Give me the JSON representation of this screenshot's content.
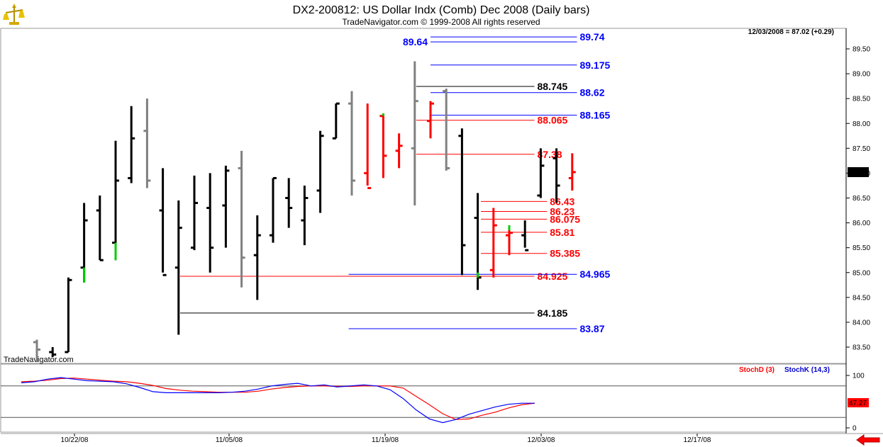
{
  "header": {
    "title": "DX2-200812:  US Dollar Indx (Comb) Dec 2008  (Daily bars)",
    "subtitle": "TradeNavigator.com © 1999-2008 All rights reserved",
    "last_quote": "12/03/2008 = 87.02 (+0.29)",
    "watermark": "TradeNavigator.com",
    "last_price_box": "87.02",
    "logo_icon": "balance-scale-icon",
    "nav_icon": "red-left-arrow-icon"
  },
  "colors": {
    "up": "#000000",
    "gray": "#808080",
    "red": "#ff0000",
    "green": "#00cc00",
    "blue": "#0000ff"
  },
  "chart_data": [
    {
      "type": "ohlc",
      "title": "DX2-200812:  US Dollar Indx (Comb) Dec 2008  (Daily bars)",
      "ylim": [
        83.2,
        89.9
      ],
      "y_ticks": [
        "83.50",
        "84.00",
        "84.50",
        "85.00",
        "85.50",
        "86.00",
        "86.50",
        "87.00",
        "87.50",
        "88.00",
        "88.50",
        "89.00",
        "89.50"
      ],
      "x_ticks": [
        "10/22/08",
        "11/05/08",
        "11/19/08",
        "12/03/08",
        "12/17/08"
      ],
      "bars": [
        {
          "x": 0,
          "o": 83.6,
          "h": 83.65,
          "l": 83.2,
          "c": 83.45,
          "color": "gray"
        },
        {
          "x": 1,
          "o": 83.4,
          "h": 83.5,
          "l": 83.3,
          "c": 83.35,
          "color": "black"
        },
        {
          "x": 2,
          "o": 83.4,
          "h": 84.9,
          "l": 83.4,
          "c": 84.85,
          "color": "black"
        },
        {
          "x": 3,
          "o": 85.1,
          "h": 86.4,
          "l": 84.8,
          "c": 86.05,
          "color": "black"
        },
        {
          "x": 4,
          "o": 86.25,
          "h": 86.55,
          "l": 85.25,
          "c": 85.25,
          "color": "black"
        },
        {
          "x": 5,
          "o": 85.6,
          "h": 87.65,
          "l": 85.25,
          "c": 86.85,
          "color": "black"
        },
        {
          "x": 6,
          "o": 86.9,
          "h": 88.35,
          "l": 86.8,
          "c": 87.7,
          "color": "black"
        },
        {
          "x": 7,
          "o": 87.85,
          "h": 88.5,
          "l": 86.7,
          "c": 86.85,
          "color": "gray"
        },
        {
          "x": 8,
          "o": 86.25,
          "h": 87.1,
          "l": 85.0,
          "c": 84.95,
          "color": "black"
        },
        {
          "x": 9,
          "o": 85.1,
          "h": 86.45,
          "l": 83.75,
          "c": 85.9,
          "color": "black"
        },
        {
          "x": 10,
          "o": 85.5,
          "h": 86.95,
          "l": 85.45,
          "c": 86.4,
          "color": "black"
        },
        {
          "x": 11,
          "o": 86.3,
          "h": 87.0,
          "l": 85.0,
          "c": 85.5,
          "color": "black"
        },
        {
          "x": 12,
          "o": 86.35,
          "h": 87.15,
          "l": 85.5,
          "c": 87.05,
          "color": "black"
        },
        {
          "x": 13,
          "o": 87.1,
          "h": 87.45,
          "l": 84.7,
          "c": 85.3,
          "color": "gray"
        },
        {
          "x": 14,
          "o": 85.35,
          "h": 86.15,
          "l": 84.45,
          "c": 85.75,
          "color": "black"
        },
        {
          "x": 15,
          "o": 85.75,
          "h": 86.9,
          "l": 85.6,
          "c": 86.9,
          "color": "black"
        },
        {
          "x": 16,
          "o": 86.5,
          "h": 86.9,
          "l": 85.9,
          "c": 86.3,
          "color": "black"
        },
        {
          "x": 17,
          "o": 86.05,
          "h": 86.75,
          "l": 85.55,
          "c": 86.5,
          "color": "black"
        },
        {
          "x": 18,
          "o": 86.65,
          "h": 87.85,
          "l": 86.2,
          "c": 87.75,
          "color": "black"
        },
        {
          "x": 19,
          "o": 87.7,
          "h": 88.4,
          "l": 87.7,
          "c": 88.4,
          "color": "black"
        },
        {
          "x": 20,
          "o": 88.4,
          "h": 88.65,
          "l": 86.55,
          "c": 86.85,
          "color": "gray"
        },
        {
          "x": 21,
          "o": 87.0,
          "h": 88.4,
          "l": 86.75,
          "c": 86.7,
          "color": "red"
        },
        {
          "x": 22,
          "o": 88.15,
          "h": 88.2,
          "l": 86.9,
          "c": 87.35,
          "color": "red"
        },
        {
          "x": 23,
          "o": 87.45,
          "h": 87.8,
          "l": 87.1,
          "c": 87.55,
          "color": "red"
        },
        {
          "x": 24,
          "o": 87.5,
          "h": 89.25,
          "l": 86.35,
          "c": 88.45,
          "color": "gray"
        },
        {
          "x": 25,
          "o": 88.05,
          "h": 88.45,
          "l": 87.7,
          "c": 88.4,
          "color": "red"
        },
        {
          "x": 26,
          "o": 88.65,
          "h": 88.7,
          "l": 87.05,
          "c": 87.1,
          "color": "gray"
        },
        {
          "x": 27,
          "o": 87.75,
          "h": 87.9,
          "l": 84.95,
          "c": 85.55,
          "color": "black"
        },
        {
          "x": 28,
          "o": 86.1,
          "h": 86.6,
          "l": 84.65,
          "c": 84.9,
          "color": "black"
        },
        {
          "x": 29,
          "o": 85.05,
          "h": 86.3,
          "l": 84.9,
          "c": 85.95,
          "color": "red"
        },
        {
          "x": 30,
          "o": 85.75,
          "h": 85.95,
          "l": 85.35,
          "c": 85.8,
          "color": "red"
        },
        {
          "x": 31,
          "o": 85.75,
          "h": 86.05,
          "l": 85.5,
          "c": 85.45,
          "color": "black"
        },
        {
          "x": 32,
          "o": 86.55,
          "h": 87.5,
          "l": 86.5,
          "c": 87.15,
          "color": "black"
        },
        {
          "x": 33,
          "o": 87.3,
          "h": 87.5,
          "l": 86.4,
          "c": 86.75,
          "color": "black"
        },
        {
          "x": 34,
          "o": 86.9,
          "h": 87.4,
          "l": 86.65,
          "c": 87.02,
          "color": "red"
        }
      ],
      "levels": [
        {
          "label": "89.74",
          "value": 89.74,
          "color": "blue",
          "from": 25,
          "to": 34.3
        },
        {
          "label": "89.64",
          "value": 89.64,
          "color": "blue",
          "from": 25,
          "to": 34.3,
          "label_left": true
        },
        {
          "label": "89.175",
          "value": 89.175,
          "color": "blue",
          "from": 25,
          "to": 34.3
        },
        {
          "label": "88.745",
          "value": 88.745,
          "color": "black",
          "from": 24.1,
          "to": 31.6
        },
        {
          "label": "88.62",
          "value": 88.62,
          "color": "blue",
          "from": 25,
          "to": 34.3
        },
        {
          "label": "88.165",
          "value": 88.165,
          "color": "blue",
          "from": 25,
          "to": 34.3
        },
        {
          "label": "88.065",
          "value": 88.065,
          "color": "red",
          "from": 24.1,
          "to": 31.6
        },
        {
          "label": "87.38",
          "value": 87.38,
          "color": "red",
          "from": 24.1,
          "to": 31.6
        },
        {
          "label": "86.43",
          "value": 86.43,
          "color": "red",
          "from": 28.2,
          "to": 32.4
        },
        {
          "label": "86.23",
          "value": 86.23,
          "color": "red",
          "from": 28.2,
          "to": 32.4
        },
        {
          "label": "86.075",
          "value": 86.075,
          "color": "red",
          "from": 28.2,
          "to": 32.4
        },
        {
          "label": "85.81",
          "value": 85.81,
          "color": "red",
          "from": 28.2,
          "to": 32.4
        },
        {
          "label": "85.385",
          "value": 85.385,
          "color": "red",
          "from": 28.2,
          "to": 32.4
        },
        {
          "label": "84.925",
          "value": 84.925,
          "color": "red",
          "from": 9.1,
          "to": 31.6
        },
        {
          "label": "84.965",
          "value": 84.965,
          "color": "blue",
          "from": 19.8,
          "to": 34.3
        },
        {
          "label": "84.185",
          "value": 84.185,
          "color": "black",
          "from": 9.1,
          "to": 31.6
        },
        {
          "label": "83.87",
          "value": 83.87,
          "color": "blue",
          "from": 19.8,
          "to": 34.3
        }
      ]
    },
    {
      "type": "line",
      "title": "StochD (3)  StochK (14,3)",
      "ylim": [
        0,
        100
      ],
      "y_ticks": [
        "0",
        "100"
      ],
      "last_value_label": "47.27",
      "reference_lines": [
        80,
        20
      ],
      "series": [
        {
          "name": "StochD (3)",
          "color": "red",
          "values": [
            88,
            89,
            91,
            94,
            95,
            93,
            91,
            89,
            88,
            85,
            81,
            75,
            72,
            70,
            69,
            68,
            68,
            68,
            70,
            74,
            77,
            79,
            80,
            80,
            79,
            79,
            80,
            80,
            80,
            76,
            60,
            44,
            27,
            16,
            17,
            24,
            30,
            38,
            44,
            47
          ]
        },
        {
          "name": "StochK (14,3)",
          "color": "blue",
          "values": [
            86,
            88,
            93,
            96,
            93,
            90,
            89,
            88,
            84,
            77,
            69,
            67,
            67,
            67,
            67,
            67,
            68,
            70,
            74,
            80,
            83,
            85,
            80,
            82,
            78,
            80,
            82,
            80,
            73,
            56,
            34,
            17,
            10,
            16,
            26,
            33,
            40,
            45,
            47,
            47
          ]
        }
      ]
    }
  ]
}
